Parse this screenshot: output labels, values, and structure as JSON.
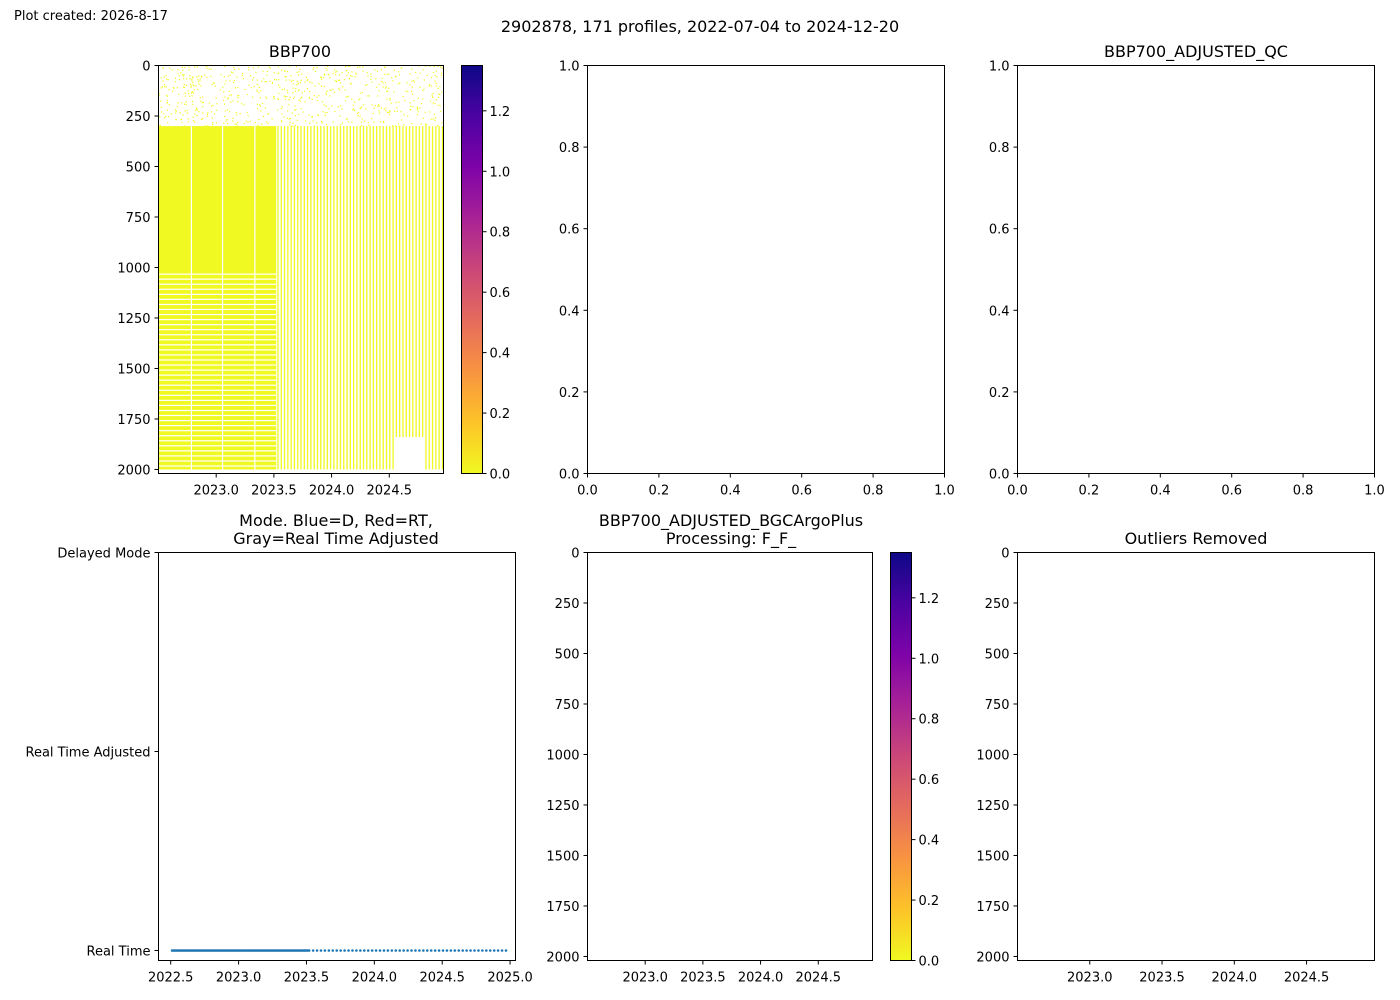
{
  "figure": {
    "created_note": "Plot created: 2026-8-17",
    "suptitle": "2902878, 171 profiles, 2022-07-04 to 2024-12-20"
  },
  "chart_data": [
    {
      "id": "bbp700",
      "type": "heatmap",
      "title": "BBP700",
      "xlim": [
        2022.5,
        2024.97
      ],
      "ylim": [
        2020,
        0
      ],
      "x_ticks": [
        "2023.0",
        "2023.5",
        "2024.0",
        "2024.5"
      ],
      "x_tick_values": [
        2023.0,
        2023.5,
        2024.0,
        2024.5
      ],
      "y_ticks": [
        "0",
        "250",
        "500",
        "750",
        "1000",
        "1250",
        "1500",
        "1750",
        "2000"
      ],
      "y_tick_values": [
        0,
        250,
        500,
        750,
        1000,
        1250,
        1500,
        1750,
        2000
      ],
      "colormap": "plasma_r",
      "color_min": "#f0f921",
      "colorbar": {
        "range": [
          0,
          1.35
        ],
        "ticks": [
          "0.0",
          "0.2",
          "0.4",
          "0.6",
          "0.8",
          "1.0",
          "1.2"
        ],
        "tick_values": [
          0.0,
          0.2,
          0.4,
          0.6,
          0.8,
          1.0,
          1.2
        ]
      },
      "value_description_range": [
        0.0,
        0.02
      ],
      "dense_period_end": 2023.52,
      "shallow_sparse_depth": 300,
      "profile_depth_max": 2000
    },
    {
      "id": "empty-1",
      "type": "scatter",
      "title": "",
      "xlim": [
        0,
        1
      ],
      "ylim": [
        0,
        1
      ],
      "x_ticks": [
        "0.0",
        "0.2",
        "0.4",
        "0.6",
        "0.8",
        "1.0"
      ],
      "x_tick_values": [
        0,
        0.2,
        0.4,
        0.6,
        0.8,
        1.0
      ],
      "y_ticks": [
        "0.0",
        "0.2",
        "0.4",
        "0.6",
        "0.8",
        "1.0"
      ],
      "y_tick_values": [
        0,
        0.2,
        0.4,
        0.6,
        0.8,
        1.0
      ]
    },
    {
      "id": "adjusted-qc",
      "type": "scatter",
      "title": "BBP700_ADJUSTED_QC",
      "xlim": [
        0,
        1
      ],
      "ylim": [
        0,
        1
      ],
      "x_ticks": [
        "0.0",
        "0.2",
        "0.4",
        "0.6",
        "0.8",
        "1.0"
      ],
      "x_tick_values": [
        0,
        0.2,
        0.4,
        0.6,
        0.8,
        1.0
      ],
      "y_ticks": [
        "0.0",
        "0.2",
        "0.4",
        "0.6",
        "0.8",
        "1.0"
      ],
      "y_tick_values": [
        0,
        0.2,
        0.4,
        0.6,
        0.8,
        1.0
      ]
    },
    {
      "id": "mode",
      "type": "scatter",
      "title_line1": "Mode. Blue=D, Red=RT,",
      "title_line2": "Gray=Real Time Adjusted",
      "xlim": [
        2022.41,
        2025.04
      ],
      "x_ticks": [
        "2022.5",
        "2023.0",
        "2023.5",
        "2024.0",
        "2024.5",
        "2025.0"
      ],
      "x_tick_values": [
        2022.5,
        2023.0,
        2023.5,
        2024.0,
        2024.5,
        2025.0
      ],
      "y_categories": [
        "Real Time",
        "Real Time Adjusted",
        "Delayed Mode"
      ],
      "marker_color": "#1f77b4",
      "series": [
        {
          "mode": "Real Time",
          "x_start": 2022.51,
          "x_end": 2023.51,
          "count": 120
        },
        {
          "mode": "Real Time",
          "x_start": 2023.52,
          "x_end": 2024.97,
          "count": 51
        }
      ]
    },
    {
      "id": "bgcargoplus",
      "type": "heatmap",
      "title_line1": "BBP700_ADJUSTED_BGCArgoPlus",
      "title_line2": "Processing: F_F_",
      "xlim": [
        2022.5,
        2024.97
      ],
      "ylim": [
        2020,
        0
      ],
      "x_ticks": [
        "2023.0",
        "2023.5",
        "2024.0",
        "2024.5"
      ],
      "x_tick_values": [
        2023.0,
        2023.5,
        2024.0,
        2024.5
      ],
      "y_ticks": [
        "0",
        "250",
        "500",
        "750",
        "1000",
        "1250",
        "1500",
        "1750",
        "2000"
      ],
      "y_tick_values": [
        0,
        250,
        500,
        750,
        1000,
        1250,
        1500,
        1750,
        2000
      ],
      "colormap": "plasma_r",
      "colorbar": {
        "range": [
          0,
          1.35
        ],
        "ticks": [
          "0.0",
          "0.2",
          "0.4",
          "0.6",
          "0.8",
          "1.0",
          "1.2"
        ],
        "tick_values": [
          0.0,
          0.2,
          0.4,
          0.6,
          0.8,
          1.0,
          1.2
        ]
      }
    },
    {
      "id": "outliers",
      "type": "heatmap",
      "title": "Outliers Removed",
      "xlim": [
        2022.5,
        2024.97
      ],
      "ylim": [
        2020,
        0
      ],
      "x_ticks": [
        "2023.0",
        "2023.5",
        "2024.0",
        "2024.5"
      ],
      "x_tick_values": [
        2023.0,
        2023.5,
        2024.0,
        2024.5
      ],
      "y_ticks": [
        "0",
        "250",
        "500",
        "750",
        "1000",
        "1250",
        "1500",
        "1750",
        "2000"
      ],
      "y_tick_values": [
        0,
        250,
        500,
        750,
        1000,
        1250,
        1500,
        1750,
        2000
      ]
    }
  ]
}
